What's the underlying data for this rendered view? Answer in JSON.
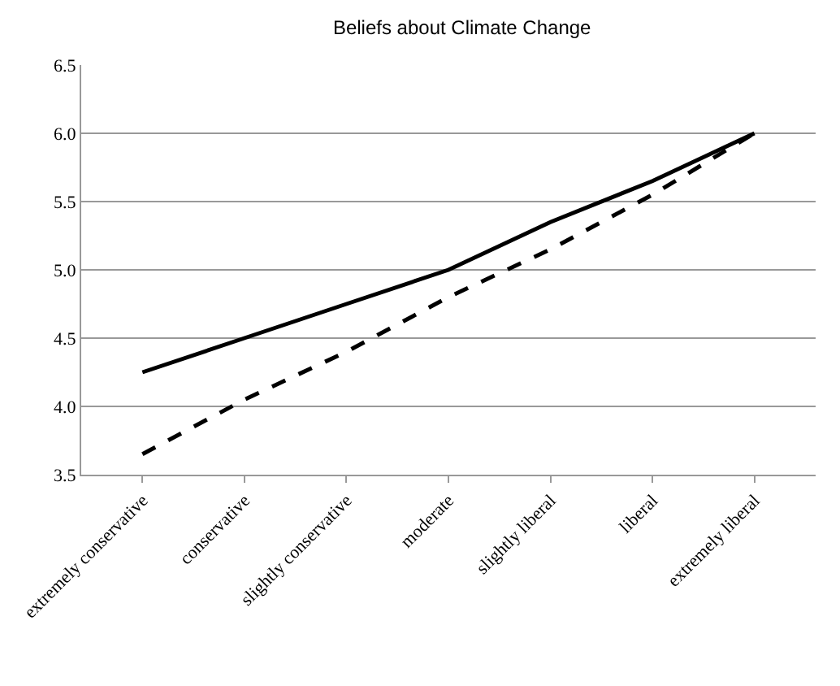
{
  "chart_data": {
    "type": "line",
    "title": "Beliefs about Climate Change",
    "categories": [
      "extremely conservative",
      "conservative",
      "slightly conservative",
      "moderate",
      "slightly liberal",
      "liberal",
      "extremely liberal"
    ],
    "series": [
      {
        "color": "#000000",
        "line_style": "solid",
        "values": [
          4.25,
          4.5,
          4.75,
          5.0,
          5.35,
          5.65,
          6.0
        ]
      },
      {
        "color": "#000000",
        "line_style": "dashed",
        "values": [
          3.65,
          4.05,
          4.4,
          4.8,
          5.15,
          5.55,
          6.0
        ]
      }
    ],
    "ylim": [
      3.5,
      6.5
    ],
    "yticks": [
      {
        "value": 3.5,
        "label": "3.5"
      },
      {
        "value": 4,
        "label": "4.0"
      },
      {
        "value": 4.5,
        "label": "4.5"
      },
      {
        "value": 5,
        "label": "5.0"
      },
      {
        "value": 5.5,
        "label": "5.5"
      },
      {
        "value": 6,
        "label": "6.0"
      },
      {
        "value": 6.5,
        "label": "6.5"
      }
    ],
    "grid": "y",
    "marker": "none"
  }
}
